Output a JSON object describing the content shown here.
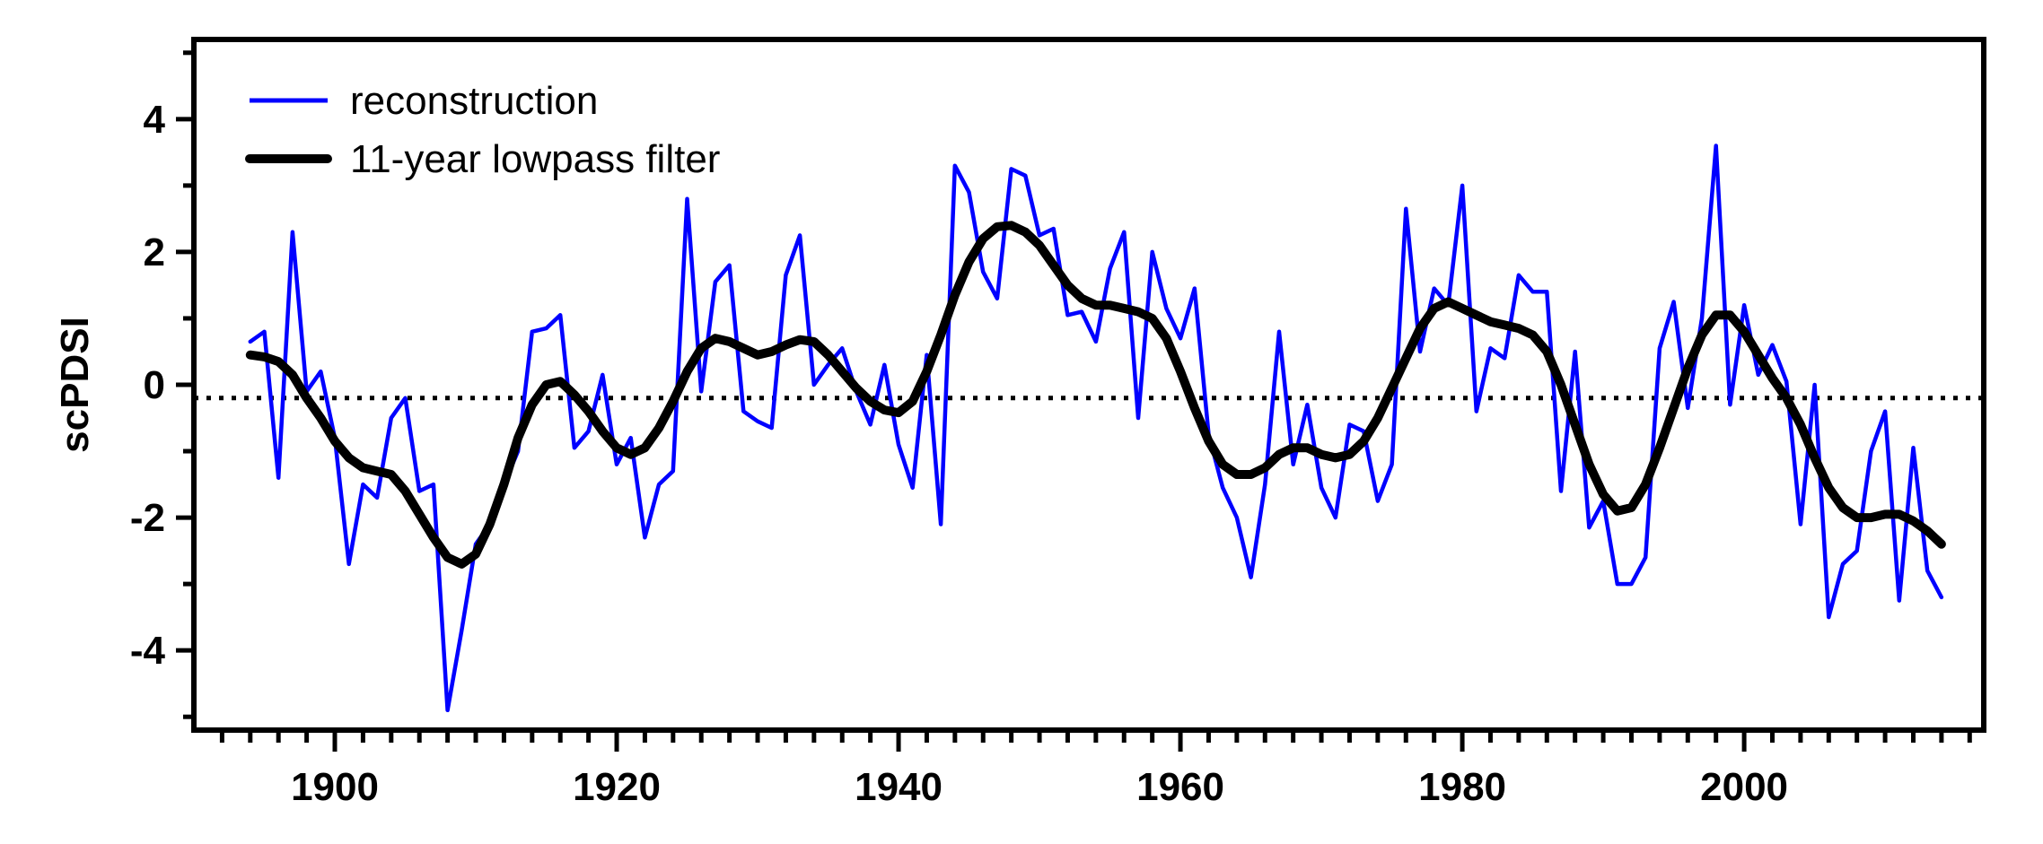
{
  "chart_data": {
    "type": "line",
    "title": "",
    "xlabel": "",
    "ylabel": "scPDSI",
    "xlim": [
      1890,
      2017
    ],
    "ylim": [
      -5.2,
      5.2
    ],
    "xticks_major": [
      1900,
      1920,
      1940,
      1960,
      1980,
      2000
    ],
    "yticks_major": [
      -4,
      -2,
      0,
      2,
      4
    ],
    "x_tick_labels": [
      "1900",
      "1920",
      "1940",
      "1960",
      "1980",
      "2000"
    ],
    "y_tick_labels": [
      "-4",
      "-2",
      "0",
      "2",
      "4"
    ],
    "reference_line": {
      "y": -0.2,
      "style": "dotted"
    },
    "legend": {
      "position": "top-left",
      "entries": [
        "reconstruction",
        "11-year lowpass filter"
      ]
    },
    "x": [
      1894,
      1895,
      1896,
      1897,
      1898,
      1899,
      1900,
      1901,
      1902,
      1903,
      1904,
      1905,
      1906,
      1907,
      1908,
      1909,
      1910,
      1911,
      1912,
      1913,
      1914,
      1915,
      1916,
      1917,
      1918,
      1919,
      1920,
      1921,
      1922,
      1923,
      1924,
      1925,
      1926,
      1927,
      1928,
      1929,
      1930,
      1931,
      1932,
      1933,
      1934,
      1935,
      1936,
      1937,
      1938,
      1939,
      1940,
      1941,
      1942,
      1943,
      1944,
      1945,
      1946,
      1947,
      1948,
      1949,
      1950,
      1951,
      1952,
      1953,
      1954,
      1955,
      1956,
      1957,
      1958,
      1959,
      1960,
      1961,
      1962,
      1963,
      1964,
      1965,
      1966,
      1967,
      1968,
      1969,
      1970,
      1971,
      1972,
      1973,
      1974,
      1975,
      1976,
      1977,
      1978,
      1979,
      1980,
      1981,
      1982,
      1983,
      1984,
      1985,
      1986,
      1987,
      1988,
      1989,
      1990,
      1991,
      1992,
      1993,
      1994,
      1995,
      1996,
      1997,
      1998,
      1999,
      2000,
      2001,
      2002,
      2003,
      2004,
      2005,
      2006,
      2007,
      2008,
      2009,
      2010,
      2011,
      2012,
      2013,
      2014
    ],
    "series": [
      {
        "name": "reconstruction",
        "color": "#0000ff",
        "values": [
          0.65,
          0.8,
          -1.4,
          2.3,
          -0.1,
          0.2,
          -0.8,
          -2.7,
          -1.5,
          -1.7,
          -0.5,
          -0.2,
          -1.6,
          -1.5,
          -4.9,
          -3.7,
          -2.4,
          -2.1,
          -1.5,
          -1.0,
          0.8,
          0.85,
          1.05,
          -0.95,
          -0.7,
          0.15,
          -1.2,
          -0.8,
          -2.3,
          -1.5,
          -1.3,
          2.8,
          -0.1,
          1.55,
          1.8,
          -0.4,
          -0.55,
          -0.65,
          1.65,
          2.25,
          0.0,
          0.3,
          0.55,
          -0.1,
          -0.6,
          0.3,
          -0.9,
          -1.55,
          0.45,
          -2.1,
          3.3,
          2.9,
          1.7,
          1.3,
          3.25,
          3.15,
          2.25,
          2.35,
          1.05,
          1.1,
          0.65,
          1.75,
          2.3,
          -0.5,
          2.0,
          1.15,
          0.7,
          1.45,
          -0.75,
          -1.55,
          -2.0,
          -2.9,
          -1.5,
          0.8,
          -1.2,
          -0.3,
          -1.55,
          -2.0,
          -0.6,
          -0.7,
          -1.75,
          -1.2,
          2.65,
          0.5,
          1.45,
          1.2,
          3.0,
          -0.4,
          0.55,
          0.4,
          1.65,
          1.4,
          1.4,
          -1.6,
          0.5,
          -2.15,
          -1.75,
          -3.0,
          -3.0,
          -2.6,
          0.55,
          1.25,
          -0.35,
          1.0,
          3.6,
          -0.3,
          1.2,
          0.15,
          0.6,
          0.05,
          -2.1,
          0.0,
          -3.5,
          -2.7,
          -2.5,
          -1.0,
          -0.4,
          -3.25,
          -0.95,
          -2.8,
          -3.2
        ]
      },
      {
        "name": "11-year lowpass filter",
        "color": "#000000",
        "values": [
          0.45,
          0.42,
          0.35,
          0.15,
          -0.2,
          -0.5,
          -0.85,
          -1.1,
          -1.25,
          -1.3,
          -1.35,
          -1.6,
          -1.95,
          -2.3,
          -2.6,
          -2.7,
          -2.55,
          -2.1,
          -1.5,
          -0.8,
          -0.3,
          0.0,
          0.05,
          -0.15,
          -0.4,
          -0.7,
          -0.95,
          -1.05,
          -0.95,
          -0.65,
          -0.25,
          0.2,
          0.55,
          0.7,
          0.65,
          0.55,
          0.45,
          0.5,
          0.6,
          0.68,
          0.65,
          0.45,
          0.2,
          -0.05,
          -0.25,
          -0.38,
          -0.42,
          -0.25,
          0.2,
          0.75,
          1.35,
          1.85,
          2.2,
          2.38,
          2.4,
          2.3,
          2.1,
          1.8,
          1.5,
          1.3,
          1.2,
          1.2,
          1.15,
          1.1,
          1.0,
          0.7,
          0.2,
          -0.35,
          -0.85,
          -1.2,
          -1.35,
          -1.35,
          -1.25,
          -1.05,
          -0.95,
          -0.95,
          -1.05,
          -1.1,
          -1.05,
          -0.85,
          -0.5,
          -0.05,
          0.4,
          0.85,
          1.15,
          1.25,
          1.15,
          1.05,
          0.95,
          0.9,
          0.85,
          0.75,
          0.5,
          0.0,
          -0.6,
          -1.2,
          -1.65,
          -1.9,
          -1.85,
          -1.5,
          -0.95,
          -0.35,
          0.25,
          0.75,
          1.05,
          1.05,
          0.8,
          0.45,
          0.1,
          -0.2,
          -0.6,
          -1.1,
          -1.55,
          -1.85,
          -2.0,
          -2.0,
          -1.95,
          -1.95,
          -2.05,
          -2.2,
          -2.4
        ]
      }
    ]
  }
}
